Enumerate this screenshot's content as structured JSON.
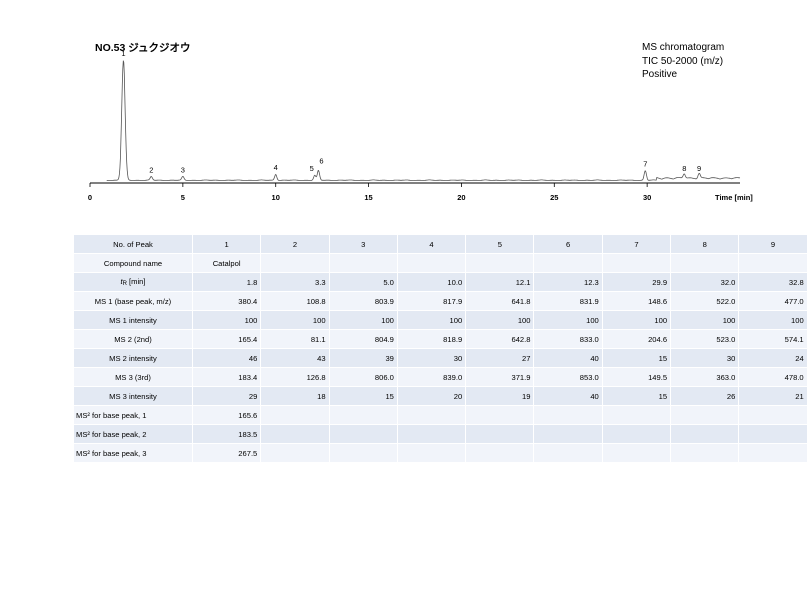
{
  "title": "NO.53 ジュクジオウ",
  "info_lines": [
    "MS chromatogram",
    "TIC 50-2000 (m/z)",
    "Positive"
  ],
  "chart_data": {
    "type": "line",
    "title": "NO.53 ジュクジオウ",
    "xlabel": "Time [min]",
    "ylabel": "",
    "xlim": [
      0,
      35
    ],
    "ylim": [
      0,
      100
    ],
    "x_ticks": [
      0,
      5,
      10,
      15,
      20,
      25,
      30
    ],
    "grid": false,
    "peaks": [
      {
        "label": "1",
        "time": 1.8,
        "height": 100
      },
      {
        "label": "2",
        "time": 3.3,
        "height": 3
      },
      {
        "label": "3",
        "time": 5.0,
        "height": 3
      },
      {
        "label": "4",
        "time": 10.0,
        "height": 5
      },
      {
        "label": "5",
        "time": 12.1,
        "height": 4
      },
      {
        "label": "6",
        "time": 12.3,
        "height": 8
      },
      {
        "label": "7",
        "time": 29.9,
        "height": 8
      },
      {
        "label": "8",
        "time": 32.0,
        "height": 4
      },
      {
        "label": "9",
        "time": 32.8,
        "height": 4
      }
    ]
  },
  "table": {
    "header_label": "No. of Peak",
    "peak_numbers": [
      "1",
      "2",
      "3",
      "4",
      "5",
      "6",
      "7",
      "8",
      "9"
    ],
    "rows": [
      {
        "label": "Compound name",
        "values": [
          "Catalpol",
          "",
          "",
          "",
          "",
          "",
          "",
          "",
          ""
        ],
        "center": true
      },
      {
        "label": "tR [min]",
        "values": [
          "1.8",
          "3.3",
          "5.0",
          "10.0",
          "12.1",
          "12.3",
          "29.9",
          "32.0",
          "32.8"
        ]
      },
      {
        "label": "MS 1 (base peak, m/z)",
        "values": [
          "380.4",
          "108.8",
          "803.9",
          "817.9",
          "641.8",
          "831.9",
          "148.6",
          "522.0",
          "477.0"
        ]
      },
      {
        "label": "MS 1 intensity",
        "values": [
          "100",
          "100",
          "100",
          "100",
          "100",
          "100",
          "100",
          "100",
          "100"
        ]
      },
      {
        "label": "MS 2 (2nd)",
        "values": [
          "165.4",
          "81.1",
          "804.9",
          "818.9",
          "642.8",
          "833.0",
          "204.6",
          "523.0",
          "574.1"
        ]
      },
      {
        "label": "MS 2 intensity",
        "values": [
          "46",
          "43",
          "39",
          "30",
          "27",
          "40",
          "15",
          "30",
          "24"
        ]
      },
      {
        "label": "MS 3 (3rd)",
        "values": [
          "183.4",
          "126.8",
          "806.0",
          "839.0",
          "371.9",
          "853.0",
          "149.5",
          "363.0",
          "478.0"
        ]
      },
      {
        "label": "MS 3 intensity",
        "values": [
          "29",
          "18",
          "15",
          "20",
          "19",
          "40",
          "15",
          "26",
          "21"
        ]
      },
      {
        "label": "MS² for base peak, 1",
        "values": [
          "165.6",
          "",
          "",
          "",
          "",
          "",
          "",
          "",
          ""
        ]
      },
      {
        "label": "MS² for base peak, 2",
        "values": [
          "183.5",
          "",
          "",
          "",
          "",
          "",
          "",
          "",
          ""
        ]
      },
      {
        "label": "MS² for base peak, 3",
        "values": [
          "267.5",
          "",
          "",
          "",
          "",
          "",
          "",
          "",
          ""
        ]
      }
    ]
  }
}
